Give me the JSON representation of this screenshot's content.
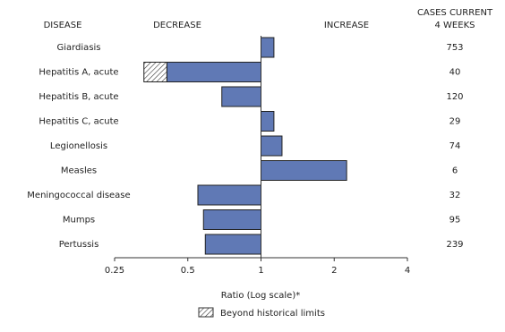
{
  "chart_data": {
    "type": "hbar",
    "headers": {
      "disease": "DISEASE",
      "decrease": "DECREASE",
      "increase": "INCREASE",
      "cases": [
        "CASES CURRENT",
        "4 WEEKS"
      ]
    },
    "categories": [
      "Giardiasis",
      "Hepatitis A, acute",
      "Hepatitis B, acute",
      "Hepatitis C, acute",
      "Legionellosis",
      "Measles",
      "Meningococcal disease",
      "Mumps",
      "Pertussis"
    ],
    "values": [
      1.13,
      0.33,
      0.69,
      1.13,
      1.22,
      2.25,
      0.55,
      0.58,
      0.59
    ],
    "historical_limits": [
      null,
      0.41,
      null,
      null,
      null,
      null,
      null,
      null,
      null
    ],
    "cases": [
      753,
      40,
      120,
      29,
      74,
      6,
      32,
      95,
      239
    ],
    "color": "#6079b5",
    "log_scale": true,
    "baseline": 1,
    "xlim": [
      0.25,
      4
    ],
    "xticks": [
      0.25,
      0.5,
      1,
      2,
      4
    ],
    "xlabel": "Ratio (Log scale)*",
    "legend": "Beyond historical limits"
  }
}
